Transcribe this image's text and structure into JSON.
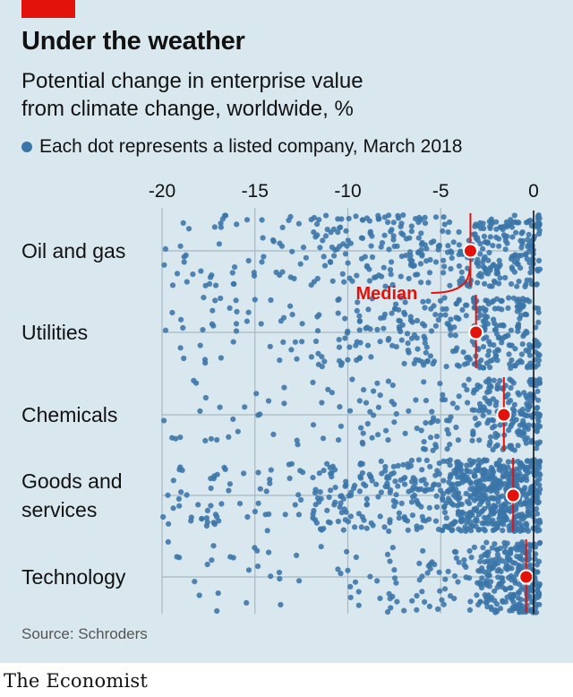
{
  "header": {
    "title": "Under the weather",
    "subtitle_line1": "Potential change in enterprise value",
    "subtitle_line2": "from climate change, worldwide, %",
    "legend_text": "Each dot represents a listed company, March 2018"
  },
  "footer": {
    "source": "Source: Schroders",
    "brand": "The Economist"
  },
  "colors": {
    "dot": "#3a75a8",
    "median": "#e3120b",
    "panel": "#d9e7ef",
    "brand_tag": "#e3120b"
  },
  "chart_data": {
    "type": "scatter",
    "title": "Under the weather",
    "subtitle": "Potential change in enterprise value from climate change, worldwide, %",
    "xlim": [
      -20,
      0
    ],
    "x_ticks": [
      {
        "value": -20,
        "label": "-20"
      },
      {
        "value": -15,
        "label": "-15"
      },
      {
        "value": -10,
        "label": "-10"
      },
      {
        "value": -5,
        "label": "-5"
      },
      {
        "value": 0,
        "label": "0"
      }
    ],
    "grid": true,
    "median_label": "Median",
    "categories": [
      {
        "lines": [
          "Oil and gas"
        ],
        "median": -3.4,
        "density": {
          "tail": 55,
          "mid": 140,
          "core": 220,
          "core_start": -5.5,
          "mid_start": -12
        }
      },
      {
        "lines": [
          "Utilities"
        ],
        "median": -3.1,
        "density": {
          "tail": 40,
          "mid": 110,
          "core": 200,
          "core_start": -5.0,
          "mid_start": -12
        }
      },
      {
        "lines": [
          "Chemicals"
        ],
        "median": -1.6,
        "density": {
          "tail": 30,
          "mid": 70,
          "core": 180,
          "core_start": -3.5,
          "mid_start": -11
        }
      },
      {
        "lines": [
          "Goods and",
          "services"
        ],
        "median": -1.1,
        "density": {
          "tail": 55,
          "mid": 180,
          "core": 520,
          "core_start": -5.0,
          "mid_start": -13
        }
      },
      {
        "lines": [
          "Technology"
        ],
        "median": -0.4,
        "density": {
          "tail": 25,
          "mid": 70,
          "core": 260,
          "core_start": -3.0,
          "mid_start": -11
        }
      }
    ]
  }
}
